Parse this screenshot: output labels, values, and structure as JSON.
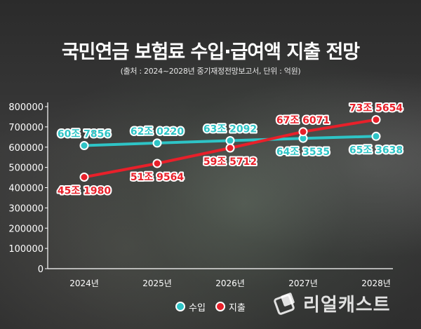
{
  "title": "국민연금 보험료 수입·급여액 지출 전망",
  "subtitle": "(출처 : 2024~2028년 중기재정전망보고서, 단위 : 억원)",
  "legend": {
    "income": "수입",
    "expense": "지출"
  },
  "brand": {
    "name": "리얼캐스트"
  },
  "colors": {
    "income": "#2ec4c6",
    "expense": "#e8202a",
    "axis": "#ffffff"
  },
  "chart_data": {
    "type": "line",
    "categories": [
      "2024년",
      "2025년",
      "2026년",
      "2027년",
      "2028년"
    ],
    "ylim": [
      0,
      800000
    ],
    "yticks": [
      "0",
      "100000",
      "200000",
      "300000",
      "400000",
      "500000",
      "600000",
      "700000",
      "800000"
    ],
    "grid": false,
    "legend_position": "bottom",
    "series": [
      {
        "name": "수입",
        "values": [
          607856,
          620220,
          632092,
          643535,
          653638
        ],
        "labels": [
          "60조 7856",
          "62조 0220",
          "63조 2092",
          "64조 3535",
          "65조 3638"
        ]
      },
      {
        "name": "지출",
        "values": [
          451980,
          519564,
          595712,
          676071,
          735654
        ],
        "labels": [
          "45조 1980",
          "51조 9564",
          "59조 5712",
          "67조 6071",
          "73조 5654"
        ]
      }
    ]
  }
}
